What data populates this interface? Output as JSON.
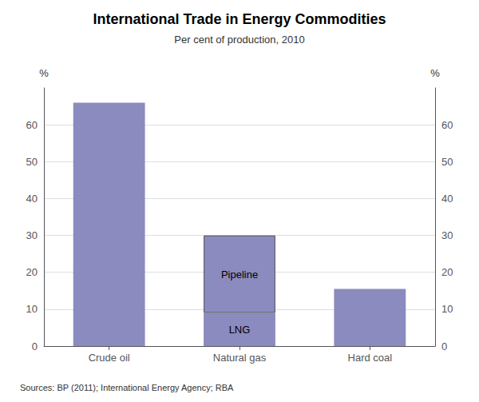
{
  "chart_data": {
    "type": "bar",
    "title": "International Trade in Energy Commodities",
    "subtitle": "Per cent of production, 2010",
    "source": "Sources: BP (2011); International Energy Agency; RBA",
    "categories": [
      "Crude oil",
      "Natural gas",
      "Hard coal"
    ],
    "stacked": true,
    "series": [
      {
        "color": "#8B8BBF",
        "values": [
          66,
          9,
          15.5
        ]
      },
      {
        "color": "#8B8BBF",
        "values": [
          null,
          21,
          null
        ]
      }
    ],
    "annotations": [
      {
        "text": "LNG",
        "category": "Natural gas",
        "series": 0
      },
      {
        "text": "Pipeline",
        "category": "Natural gas",
        "series": 1
      }
    ],
    "ylabel": "%",
    "ylim": [
      0,
      70
    ],
    "yticks": [
      0,
      10,
      20,
      30,
      40,
      50,
      60
    ],
    "y2label": "%",
    "y2lim": [
      0,
      70
    ],
    "y2ticks": [
      0,
      10,
      20,
      30,
      40,
      50,
      60
    ],
    "grid": true
  }
}
